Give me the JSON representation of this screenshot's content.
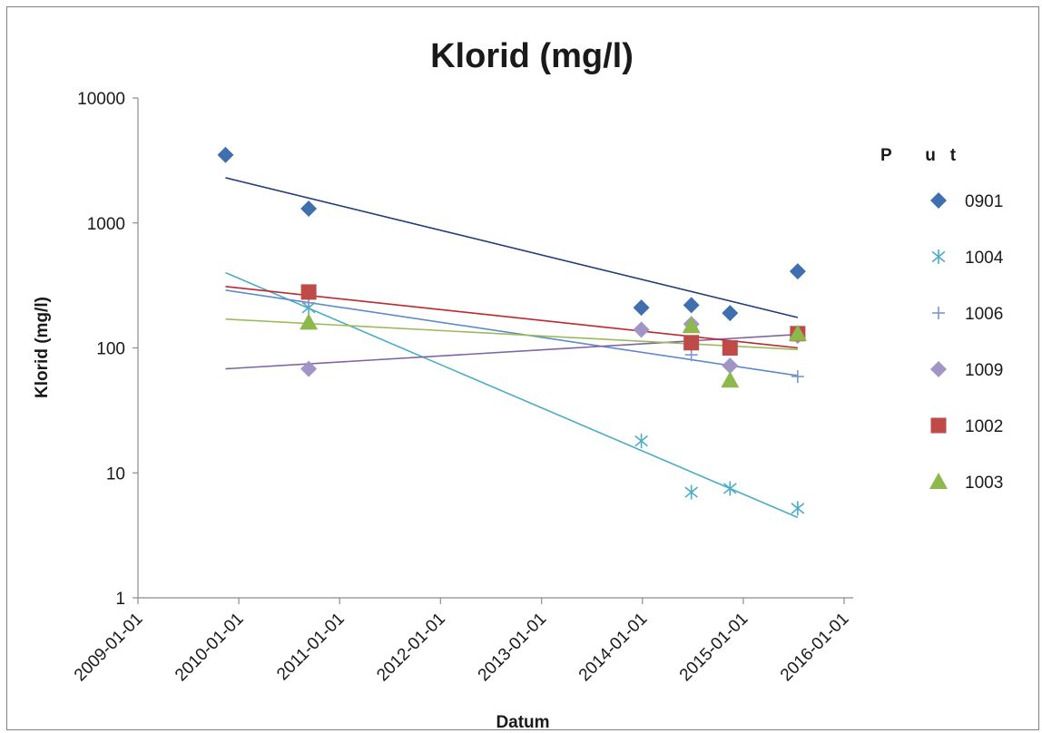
{
  "chart_data": {
    "type": "scatter",
    "title": "Klorid (mg/l)",
    "xlabel": "Datum",
    "ylabel": "Klorid (mg/l)",
    "yscale": "log",
    "ylim": [
      1,
      10000
    ],
    "yticks": [
      "1",
      "10",
      "100",
      "1000",
      "10000"
    ],
    "xlim": [
      "2009-01-01",
      "2016-01-01"
    ],
    "xticks": [
      "2009-01-01",
      "2010-01-01",
      "2011-01-01",
      "2012-01-01",
      "2013-01-01",
      "2014-01-01",
      "2015-01-01",
      "2016-01-01"
    ],
    "grid": false,
    "legend_title": "P       u   t",
    "legend_position": "right",
    "trendlines": true,
    "series": [
      {
        "name": "0901",
        "color": "#3F6FAF",
        "marker": "diamond",
        "trend_color": "#1F3D78",
        "points": [
          [
            "2009-11-14",
            3500
          ],
          [
            "2010-09-11",
            1300
          ],
          [
            "2013-12-28",
            210
          ],
          [
            "2014-06-27",
            220
          ],
          [
            "2014-11-14",
            190
          ],
          [
            "2015-07-17",
            410
          ]
        ],
        "trend": [
          [
            "2009-11-14",
            2300
          ],
          [
            "2015-07-17",
            175
          ]
        ]
      },
      {
        "name": "1004",
        "color": "#4BACC6",
        "marker": "asterisk",
        "trend_color": "#4BACC6",
        "points": [
          [
            "2010-09-11",
            210
          ],
          [
            "2013-12-28",
            18
          ],
          [
            "2014-06-27",
            7
          ],
          [
            "2014-11-14",
            7.5
          ],
          [
            "2015-07-17",
            5.2
          ]
        ],
        "trend": [
          [
            "2009-11-14",
            400
          ],
          [
            "2015-07-17",
            4.4
          ]
        ]
      },
      {
        "name": "1006",
        "color": "#7F96C8",
        "marker": "plus",
        "trend_color": "#5B8BCB",
        "points": [
          [
            "2010-09-11",
            230
          ],
          [
            "2014-06-27",
            88
          ],
          [
            "2015-07-17",
            59
          ]
        ],
        "trend": [
          [
            "2009-11-14",
            290
          ],
          [
            "2015-07-17",
            60
          ]
        ]
      },
      {
        "name": "1009",
        "color": "#A295C6",
        "marker": "diamond",
        "trend_color": "#7F63A2",
        "points": [
          [
            "2010-09-11",
            68
          ],
          [
            "2013-12-28",
            140
          ],
          [
            "2014-06-27",
            155
          ],
          [
            "2014-11-14",
            72
          ],
          [
            "2015-07-17",
            125
          ]
        ],
        "trend": [
          [
            "2009-11-14",
            68
          ],
          [
            "2015-07-17",
            128
          ]
        ]
      },
      {
        "name": "1002",
        "color": "#BE4B48",
        "marker": "square",
        "trend_color": "#C0262E",
        "points": [
          [
            "2010-09-11",
            280
          ],
          [
            "2014-06-27",
            110
          ],
          [
            "2014-11-14",
            100
          ],
          [
            "2015-07-17",
            130
          ]
        ],
        "trend": [
          [
            "2009-11-14",
            310
          ],
          [
            "2015-07-17",
            100
          ]
        ]
      },
      {
        "name": "1003",
        "color": "#8DB84B",
        "marker": "triangle",
        "trend_color": "#9BBB59",
        "points": [
          [
            "2010-09-11",
            160
          ],
          [
            "2014-06-27",
            150
          ],
          [
            "2014-11-14",
            55
          ],
          [
            "2015-07-17",
            130
          ]
        ],
        "trend": [
          [
            "2009-11-14",
            170
          ],
          [
            "2015-07-17",
            97
          ]
        ]
      }
    ]
  }
}
